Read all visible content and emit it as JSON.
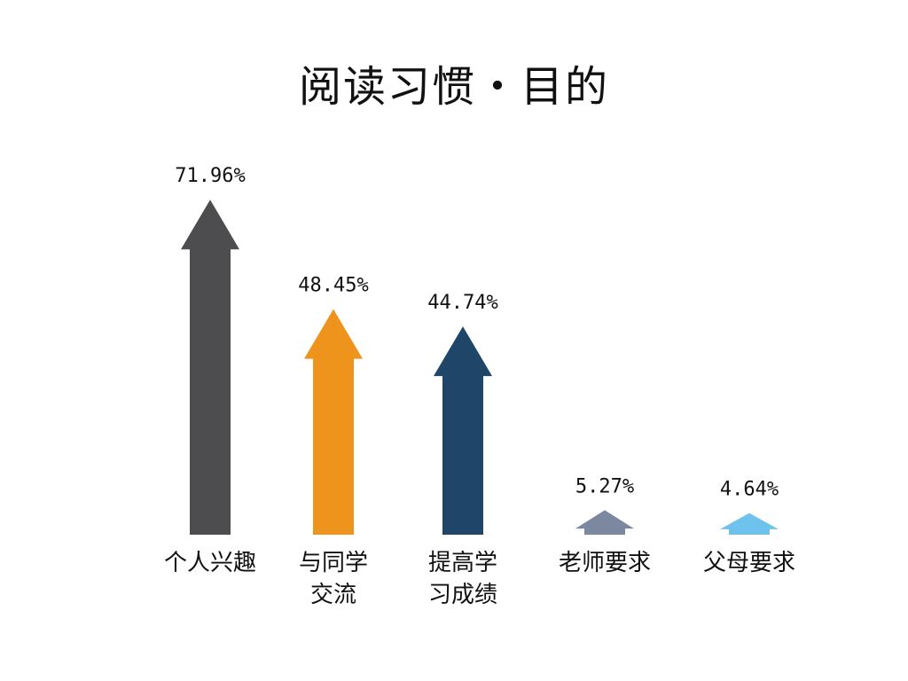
{
  "title": "阅读习惯・目的",
  "chart_data": {
    "type": "bar",
    "title": "阅读习惯・目的",
    "categories": [
      "个人兴趣",
      "与同学交流",
      "提高学习成绩",
      "老师要求",
      "父母要求"
    ],
    "category_lines": [
      [
        "个人兴趣"
      ],
      [
        "与同学",
        "交流"
      ],
      [
        "提高学",
        "习成绩"
      ],
      [
        "老师要求"
      ],
      [
        "父母要求"
      ]
    ],
    "values": [
      71.96,
      48.45,
      44.74,
      5.27,
      4.64
    ],
    "value_labels": [
      "71.96%",
      "48.45%",
      "44.74%",
      "5.27%",
      "4.64%"
    ],
    "colors": [
      "#4d4c4f",
      "#ee941d",
      "#1f4669",
      "#7c87a0",
      "#6ec3ec"
    ],
    "ylim": [
      0,
      100
    ],
    "grid": false,
    "legend": "none",
    "mark_shape": "arrow"
  }
}
